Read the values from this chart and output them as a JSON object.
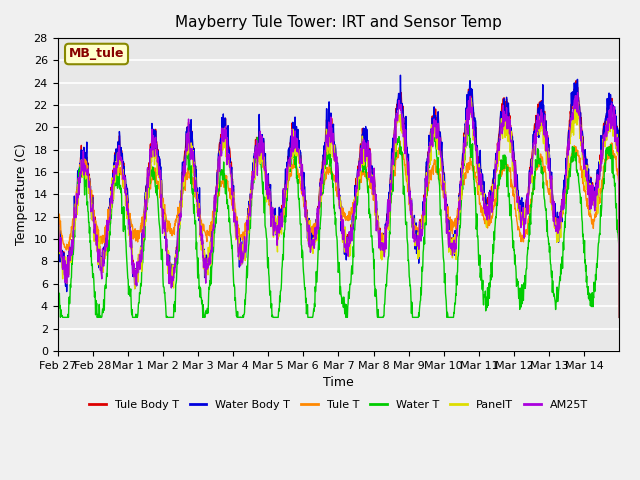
{
  "title": "Mayberry Tule Tower: IRT and Sensor Temp",
  "xlabel": "Time",
  "ylabel": "Temperature (C)",
  "ylim": [
    0,
    28
  ],
  "yticks": [
    0,
    2,
    4,
    6,
    8,
    10,
    12,
    14,
    16,
    18,
    20,
    22,
    24,
    26,
    28
  ],
  "xtick_labels": [
    "Feb 27",
    "Feb 28",
    "Mar 1",
    "Mar 2",
    "Mar 3",
    "Mar 4",
    "Mar 5",
    "Mar 6",
    "Mar 7",
    "Mar 8",
    "Mar 9",
    "Mar 10",
    "Mar 11",
    "Mar 12",
    "Mar 13",
    "Mar 14"
  ],
  "bg_color": "#e8e8e8",
  "fig_color": "#f0f0f0",
  "grid_color": "#ffffff",
  "series_colors": {
    "Tule Body T": "#dd0000",
    "Water Body T": "#0000dd",
    "Tule T": "#ff8800",
    "Water T": "#00cc00",
    "PanelT": "#dddd00",
    "AM25T": "#aa00dd"
  },
  "legend_label": "MB_tule",
  "legend_bg": "#ffffcc",
  "legend_border": "#888800",
  "legend_text_color": "#880000"
}
